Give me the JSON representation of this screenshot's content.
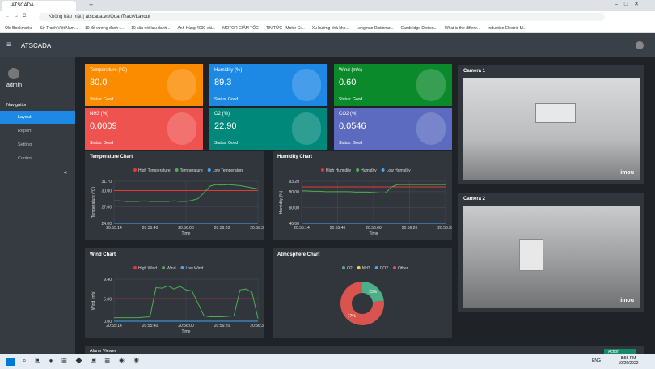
{
  "browser": {
    "tab": "ATSCADA",
    "url_prefix": "Không bảo mật",
    "url": "atscada.vn/QuanTrac#/Layout",
    "bookmarks": [
      "Old Bookmarks",
      "Sở Tranh Việt Nam...",
      "10 đề vương đanh t...",
      "10 câu nói lưu danh...",
      "Anh Hùng 4000 vài...",
      "MOTOR GIẢM TỐC",
      "TIN TỨC - Motor Gi...",
      "Xu hướng nhà kho...",
      "Longman Dictionar...",
      "Cambridge Diction...",
      "What is the differe...",
      "Induction Electric M..."
    ]
  },
  "app": {
    "title": "ATSCADA",
    "user": "admin",
    "nav_heading": "Navigation",
    "nav": [
      "Layout",
      "Report",
      "Setting",
      "Control"
    ]
  },
  "cards": [
    {
      "label": "Temperature (°C)",
      "value": "30.0",
      "status": "Status: Good",
      "color": "#fb8c00"
    },
    {
      "label": "Humidity (%)",
      "value": "89.3",
      "status": "Status: Good",
      "color": "#1e88e5"
    },
    {
      "label": "Wind (m/s)",
      "value": "0.60",
      "status": "Status: Good",
      "color": "#0b8a2c"
    },
    {
      "label": "NH3 (%)",
      "value": "0.0009",
      "status": "Status: Good",
      "color": "#ef5350"
    },
    {
      "label": "O2 (%)",
      "value": "22.90",
      "status": "Status: Good",
      "color": "#00897b"
    },
    {
      "label": "CO2 (%)",
      "value": "0.0546",
      "status": "Status: Good",
      "color": "#5c6bc0"
    }
  ],
  "charts": [
    {
      "type": "line",
      "title": "Temperature Chart",
      "ylabel": "Temperature (°C)",
      "xlabel": "Time",
      "ylim": [
        24,
        31.7
      ],
      "yticks": [
        {
          "value": 24,
          "label": "24.00"
        },
        {
          "value": 27,
          "label": "27.00"
        },
        {
          "value": 30,
          "label": "30.00"
        },
        {
          "value": 31.7,
          "label": "31.70"
        }
      ],
      "xtick_labels": [
        "20:55:14",
        "20:55:40",
        "20:56:00",
        "20:56:20",
        "20:56:39"
      ],
      "series": [
        {
          "name": "High Temperature",
          "color": "#e53935",
          "values": [
            30,
            30,
            30,
            30,
            30,
            30,
            30,
            30,
            30,
            30,
            30,
            30,
            30,
            30,
            30,
            30,
            30,
            30,
            30,
            30,
            30,
            30,
            30,
            30,
            30
          ]
        },
        {
          "name": "Temperature",
          "color": "#4caf50",
          "values": [
            28.1,
            28.1,
            28.0,
            28.0,
            28.0,
            28.1,
            28.0,
            28.0,
            28.0,
            28.0,
            28.1,
            28.0,
            28.0,
            28.2,
            28.5,
            29.6,
            30.8,
            31.1,
            31.0,
            31.1,
            31.0,
            30.9,
            30.7,
            30.5,
            30.3
          ]
        },
        {
          "name": "Low Temperature",
          "color": "#42a5f5",
          "values": [
            24,
            24,
            24,
            24,
            24,
            24,
            24,
            24,
            24,
            24,
            24,
            24,
            24,
            24,
            24,
            24,
            24,
            24,
            24,
            24,
            24,
            24,
            24,
            24,
            24
          ]
        }
      ]
    },
    {
      "type": "line",
      "title": "Humidity Chart",
      "ylabel": "Humidity (%)",
      "xlabel": "Time",
      "ylim": [
        40,
        93.2
      ],
      "yticks": [
        {
          "value": 40,
          "label": "40.00"
        },
        {
          "value": 60,
          "label": "60.00"
        },
        {
          "value": 80,
          "label": "80.00"
        },
        {
          "value": 93.2,
          "label": "93.20"
        }
      ],
      "xtick_labels": [
        "20:55:14",
        "20:55:40",
        "20:56:00",
        "20:56:20",
        "20:56:39"
      ],
      "series": [
        {
          "name": "High Humidity",
          "color": "#e53935",
          "values": [
            86,
            86,
            86,
            86,
            86,
            86,
            86,
            86,
            86,
            86,
            86,
            86,
            86,
            86,
            86,
            86,
            86,
            86,
            86,
            86,
            86,
            86,
            86,
            86,
            86
          ]
        },
        {
          "name": "Humidity",
          "color": "#4caf50",
          "values": [
            81,
            81,
            80.5,
            80.5,
            80,
            80,
            80,
            80,
            80,
            79.5,
            79.5,
            79.5,
            79,
            78.5,
            78.5,
            86,
            89,
            89,
            89,
            89,
            89,
            89,
            89,
            89,
            89
          ]
        },
        {
          "name": "Low Humidity",
          "color": "#42a5f5",
          "values": [
            40,
            40,
            40,
            40,
            40,
            40,
            40,
            40,
            40,
            40,
            40,
            40,
            40,
            40,
            40,
            40,
            40,
            40,
            40,
            40,
            40,
            40,
            40,
            40,
            40
          ]
        }
      ]
    },
    {
      "type": "line",
      "title": "Wind Chart",
      "ylabel": "Wind (m/s)",
      "xlabel": "Time",
      "ylim": [
        0,
        9.4
      ],
      "yticks": [
        {
          "value": 0,
          "label": "0.00"
        },
        {
          "value": 5,
          "label": "5.00"
        },
        {
          "value": 9.4,
          "label": "9.40"
        }
      ],
      "xtick_labels": [
        "20:55:14",
        "20:55:40",
        "20:56:00",
        "20:56:20",
        "20:56:39"
      ],
      "series": [
        {
          "name": "High Wind",
          "color": "#e53935",
          "values": [
            5,
            5,
            5,
            5,
            5,
            5,
            5,
            5,
            5,
            5,
            5,
            5,
            5,
            5,
            5,
            5,
            5,
            5,
            5,
            5,
            5,
            5,
            5,
            5,
            5
          ]
        },
        {
          "name": "Wind",
          "color": "#4caf50",
          "values": [
            0.8,
            0.8,
            0.8,
            0.8,
            0.8,
            0.9,
            1.0,
            7.5,
            7.4,
            7.9,
            7.2,
            7.8,
            7.0,
            6.8,
            4.0,
            1.2,
            1.0,
            1.0,
            1.0,
            1.1,
            1.2,
            7.0,
            7.2,
            6.5,
            0.6
          ]
        },
        {
          "name": "Low Wind",
          "color": "#42a5f5",
          "values": [
            0,
            0,
            0,
            0,
            0,
            0,
            0,
            0,
            0,
            0,
            0,
            0,
            0,
            0,
            0,
            0,
            0,
            0,
            0,
            0,
            0,
            0,
            0,
            0,
            0
          ]
        }
      ]
    },
    {
      "type": "pie",
      "title": "Atmosphere Chart",
      "categories": [
        "O2",
        "NH3",
        "CO2",
        "Other"
      ],
      "values": [
        23,
        0,
        0,
        77
      ],
      "colors": [
        "#4caf8a",
        "#f4d03f",
        "#42a5f5",
        "#d9534f"
      ],
      "value_labels": [
        "23%",
        null,
        null,
        "77%"
      ]
    }
  ],
  "cameras": [
    {
      "title": "Camera 1",
      "brand": "imou"
    },
    {
      "title": "Camera 2",
      "brand": "imou"
    }
  ],
  "alarm": {
    "title": "Alarm Viewer",
    "button": "Action"
  },
  "taskbar": {
    "lang": "ENG",
    "time": "8:56 PM",
    "date": "10/26/2022"
  }
}
